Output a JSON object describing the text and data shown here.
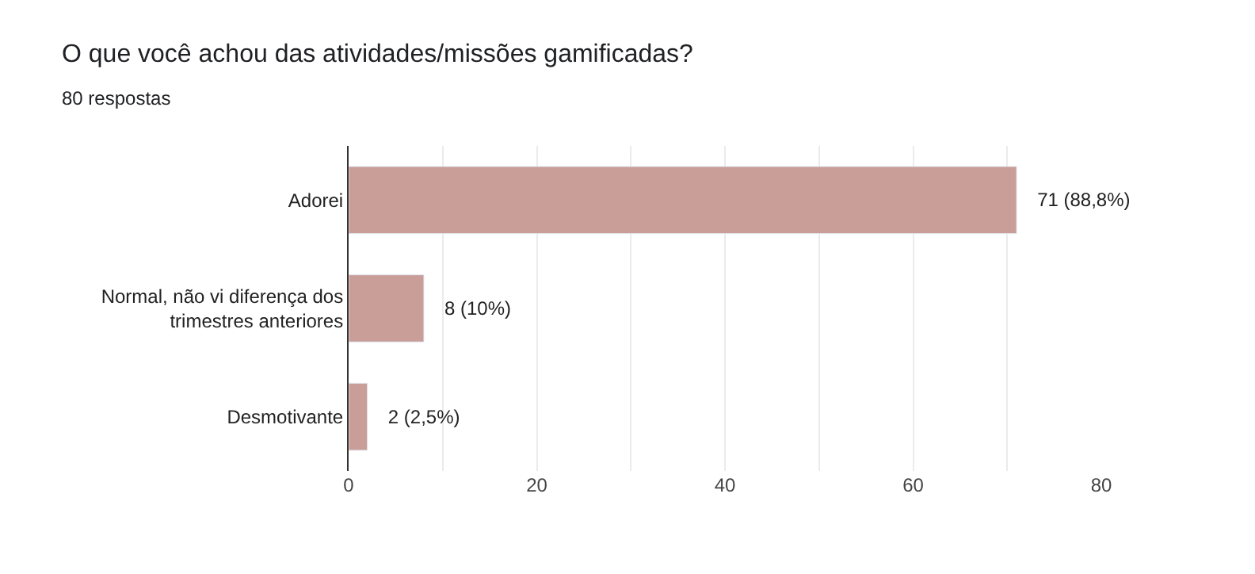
{
  "chart_data": {
    "type": "bar",
    "orientation": "horizontal",
    "title": "O que você achou das atividades/missões gamificadas?",
    "subtitle": "80 respostas",
    "categories": [
      "Adorei",
      "Normal, não vi diferença dos trimestres anteriores",
      "Desmotivante"
    ],
    "values": [
      71,
      8,
      2
    ],
    "value_labels": [
      "71 (88,8%)",
      "8 (10%)",
      "2 (2,5%)"
    ],
    "color": "#c99e99",
    "xlim": [
      0,
      80
    ],
    "xticks": [
      0,
      {
        "value": 10,
        "label": null
      },
      20,
      {
        "value": 30,
        "label": null
      },
      40,
      {
        "value": 50,
        "label": null
      },
      60,
      {
        "value": 70,
        "label": null
      },
      80
    ],
    "grid": "x",
    "legend": false
  }
}
